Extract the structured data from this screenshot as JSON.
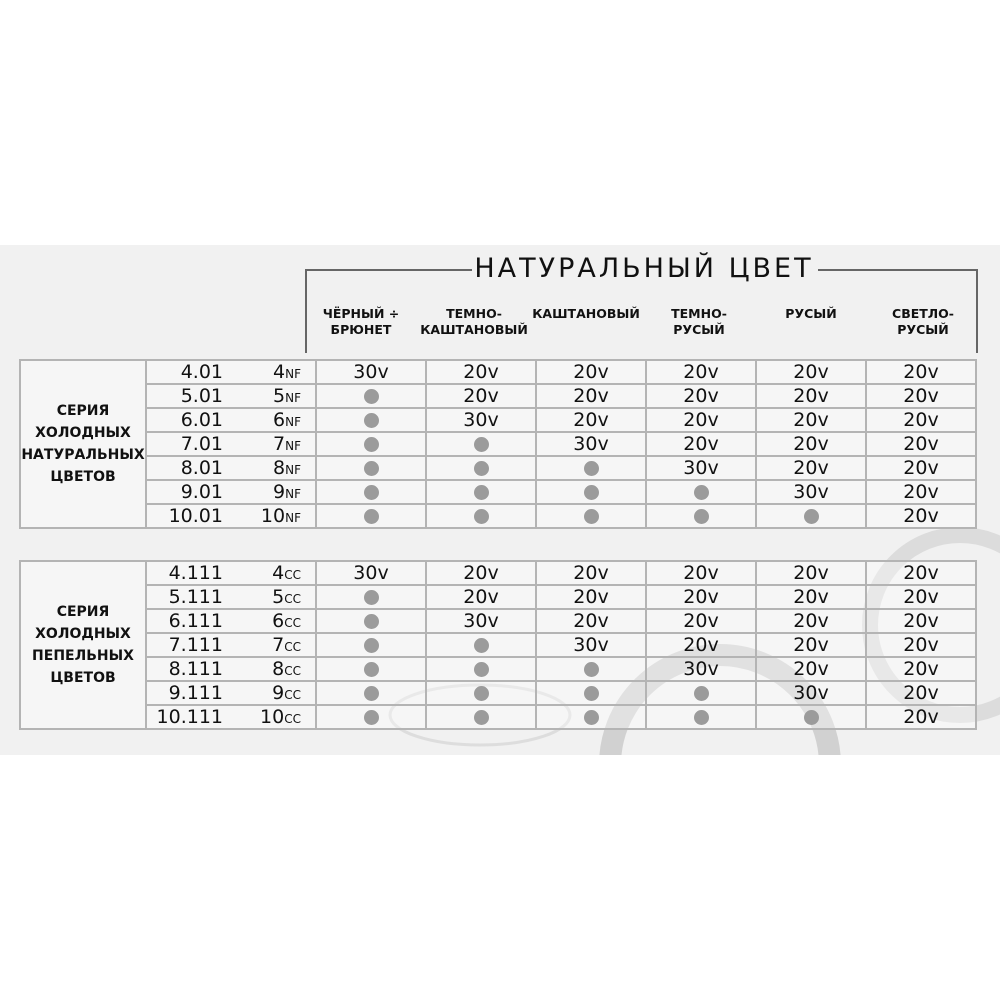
{
  "header": {
    "title": "НАТУРАЛЬНЫЙ ЦВЕТ",
    "columns": [
      [
        "ЧЁРНЫЙ ÷",
        "БРЮНЕТ"
      ],
      [
        "ТЕМНО-",
        "КАШТАНОВЫЙ"
      ],
      [
        "КАШТАНОВЫЙ",
        ""
      ],
      [
        "ТЕМНО-",
        "РУСЫЙ"
      ],
      [
        "РУСЫЙ",
        ""
      ],
      [
        "СВЕТЛО-",
        "РУСЫЙ"
      ]
    ]
  },
  "colors": {
    "dot": "#9b9b9b",
    "band": "#f1f1f1",
    "border": "#b4b4b4"
  },
  "tables": [
    {
      "group": [
        "СЕРИЯ",
        "ХОЛОДНЫХ",
        "НАТУРАЛЬНЫХ",
        "ЦВЕТОВ"
      ],
      "rows": [
        {
          "code": "4.01",
          "num": "4",
          "suffix": "NF",
          "cells": [
            "30v",
            "20v",
            "20v",
            "20v",
            "20v",
            "20v"
          ]
        },
        {
          "code": "5.01",
          "num": "5",
          "suffix": "NF",
          "cells": [
            "dot",
            "20v",
            "20v",
            "20v",
            "20v",
            "20v"
          ]
        },
        {
          "code": "6.01",
          "num": "6",
          "suffix": "NF",
          "cells": [
            "dot",
            "30v",
            "20v",
            "20v",
            "20v",
            "20v"
          ]
        },
        {
          "code": "7.01",
          "num": "7",
          "suffix": "NF",
          "cells": [
            "dot",
            "dot",
            "30v",
            "20v",
            "20v",
            "20v"
          ]
        },
        {
          "code": "8.01",
          "num": "8",
          "suffix": "NF",
          "cells": [
            "dot",
            "dot",
            "dot",
            "30v",
            "20v",
            "20v"
          ]
        },
        {
          "code": "9.01",
          "num": "9",
          "suffix": "NF",
          "cells": [
            "dot",
            "dot",
            "dot",
            "dot",
            "30v",
            "20v"
          ]
        },
        {
          "code": "10.01",
          "num": "10",
          "suffix": "NF",
          "cells": [
            "dot",
            "dot",
            "dot",
            "dot",
            "dot",
            "20v"
          ]
        }
      ]
    },
    {
      "group": [
        "СЕРИЯ",
        "ХОЛОДНЫХ",
        "ПЕПЕЛЬНЫХ",
        "ЦВЕТОВ"
      ],
      "rows": [
        {
          "code": "4.111",
          "num": "4",
          "suffix": "CC",
          "cells": [
            "30v",
            "20v",
            "20v",
            "20v",
            "20v",
            "20v"
          ]
        },
        {
          "code": "5.111",
          "num": "5",
          "suffix": "CC",
          "cells": [
            "dot",
            "20v",
            "20v",
            "20v",
            "20v",
            "20v"
          ]
        },
        {
          "code": "6.111",
          "num": "6",
          "suffix": "CC",
          "cells": [
            "dot",
            "30v",
            "20v",
            "20v",
            "20v",
            "20v"
          ]
        },
        {
          "code": "7.111",
          "num": "7",
          "suffix": "CC",
          "cells": [
            "dot",
            "dot",
            "30v",
            "20v",
            "20v",
            "20v"
          ]
        },
        {
          "code": "8.111",
          "num": "8",
          "suffix": "CC",
          "cells": [
            "dot",
            "dot",
            "dot",
            "30v",
            "20v",
            "20v"
          ]
        },
        {
          "code": "9.111",
          "num": "9",
          "suffix": "CC",
          "cells": [
            "dot",
            "dot",
            "dot",
            "dot",
            "30v",
            "20v"
          ]
        },
        {
          "code": "10.111",
          "num": "10",
          "suffix": "CC",
          "cells": [
            "dot",
            "dot",
            "dot",
            "dot",
            "dot",
            "20v"
          ]
        }
      ]
    }
  ]
}
